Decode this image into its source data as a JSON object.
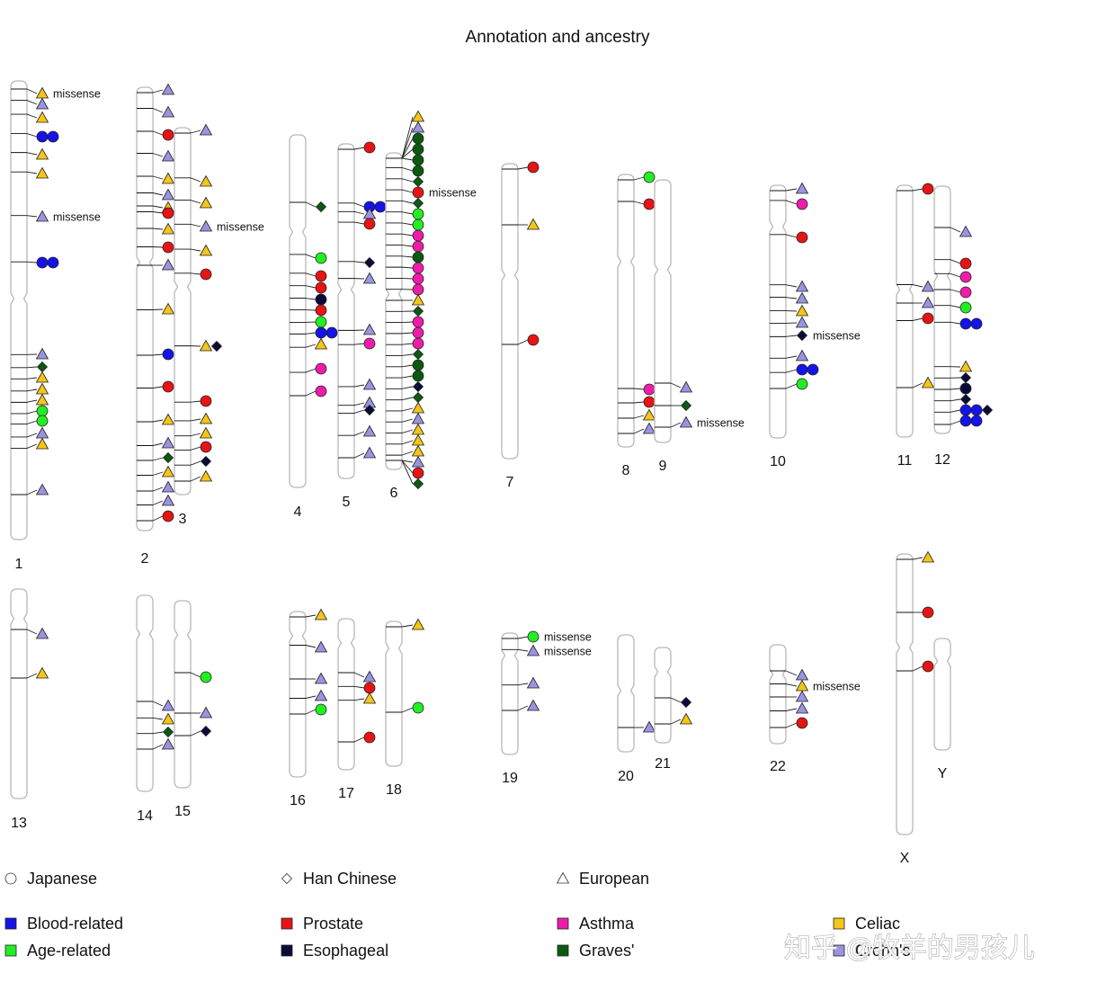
{
  "title": "Annotation and ancestry",
  "colors": {
    "Blood-related": "#1414e6",
    "Age-related": "#22ee22",
    "Prostate": "#e61414",
    "Esophageal": "#0b0b3a",
    "Asthma": "#ee1ca8",
    "Graves'": "#0c5a10",
    "Celiac": "#f5c518",
    "Crohn's": "#9a94e0"
  },
  "legend": {
    "ancestry": [
      {
        "shape": "circle",
        "label": "Japanese"
      },
      {
        "shape": "diamond",
        "label": "Han Chinese"
      },
      {
        "shape": "triangle",
        "label": "European"
      }
    ],
    "traits": [
      {
        "label": "Blood-related",
        "color": "#1414e6"
      },
      {
        "label": "Age-related",
        "color": "#22ee22"
      },
      {
        "label": "Prostate",
        "color": "#e61414"
      },
      {
        "label": "Esophageal",
        "color": "#0b0b3a"
      },
      {
        "label": "Asthma",
        "color": "#ee1ca8"
      },
      {
        "label": "Graves'",
        "color": "#0c5a10"
      },
      {
        "label": "Celiac",
        "color": "#f5c518"
      },
      {
        "label": "Crohn's",
        "color": "#9a94e0"
      }
    ]
  },
  "watermark": "知乎 @牧羊的男孩儿",
  "chromosomes": [
    {
      "label": "1",
      "loci": [
        [
          14,
          "triangle",
          "Celiac",
          "missense"
        ],
        [
          26,
          "triangle",
          "Crohn's"
        ],
        [
          41,
          "triangle",
          "Celiac"
        ],
        [
          62,
          "circle",
          "Blood-related"
        ],
        [
          62,
          "circle",
          "Blood-related"
        ],
        [
          82,
          "triangle",
          "Celiac"
        ],
        [
          103,
          "triangle",
          "Celiac"
        ],
        [
          151,
          "triangle",
          "Crohn's",
          "missense"
        ],
        [
          202,
          "circle",
          "Blood-related"
        ],
        [
          202,
          "circle",
          "Blood-related"
        ],
        [
          304,
          "triangle",
          "Crohn's"
        ],
        [
          318,
          "diamond",
          "Graves'"
        ],
        [
          330,
          "triangle",
          "Celiac"
        ],
        [
          343,
          "triangle",
          "Celiac"
        ],
        [
          355,
          "triangle",
          "Celiac"
        ],
        [
          367,
          "circle",
          "Age-related"
        ],
        [
          378,
          "circle",
          "Age-related"
        ],
        [
          392,
          "triangle",
          "Crohn's"
        ],
        [
          404,
          "triangle",
          "Celiac"
        ],
        [
          455,
          "triangle",
          "Crohn's"
        ]
      ]
    },
    {
      "label": "2",
      "loci": [
        [
          3,
          "triangle",
          "Crohn's"
        ],
        [
          28,
          "triangle",
          "Crohn's"
        ],
        [
          53,
          "circle",
          "Prostate"
        ],
        [
          77,
          "triangle",
          "Crohn's"
        ],
        [
          102,
          "triangle",
          "Celiac"
        ],
        [
          120,
          "triangle",
          "Crohn's"
        ],
        [
          134,
          "triangle",
          "Celiac"
        ],
        [
          140,
          "circle",
          "Prostate"
        ],
        [
          158,
          "triangle",
          "Celiac"
        ],
        [
          178,
          "circle",
          "Prostate"
        ],
        [
          198,
          "triangle",
          "Crohn's"
        ],
        [
          247,
          "triangle",
          "Celiac"
        ],
        [
          297,
          "circle",
          "Blood-related"
        ],
        [
          333,
          "circle",
          "Prostate"
        ],
        [
          370,
          "triangle",
          "Celiac"
        ],
        [
          396,
          "triangle",
          "Crohn's"
        ],
        [
          412,
          "diamond",
          "Graves'"
        ],
        [
          428,
          "triangle",
          "Celiac"
        ],
        [
          445,
          "triangle",
          "Crohn's"
        ],
        [
          460,
          "triangle",
          "Crohn's"
        ],
        [
          477,
          "circle",
          "Prostate"
        ]
      ]
    },
    {
      "label": "3",
      "loci": [
        [
          3,
          "triangle",
          "Crohn's"
        ],
        [
          60,
          "triangle",
          "Celiac"
        ],
        [
          84,
          "triangle",
          "Celiac"
        ],
        [
          110,
          "triangle",
          "Crohn's",
          "missense"
        ],
        [
          137,
          "triangle",
          "Celiac"
        ],
        [
          163,
          "circle",
          "Prostate"
        ],
        [
          243,
          "triangle",
          "Celiac"
        ],
        [
          243,
          "diamond",
          "Esophageal"
        ],
        [
          304,
          "circle",
          "Prostate"
        ],
        [
          324,
          "triangle",
          "Celiac"
        ],
        [
          340,
          "triangle",
          "Celiac"
        ],
        [
          355,
          "circle",
          "Prostate"
        ],
        [
          371,
          "diamond",
          "Esophageal"
        ],
        [
          388,
          "triangle",
          "Celiac"
        ]
      ]
    },
    {
      "label": "4",
      "loci": [
        [
          80,
          "diamond",
          "Graves'"
        ],
        [
          137,
          "circle",
          "Age-related"
        ],
        [
          157,
          "circle",
          "Prostate"
        ],
        [
          170,
          "circle",
          "Prostate"
        ],
        [
          183,
          "circle",
          "Esophageal"
        ],
        [
          195,
          "circle",
          "Prostate"
        ],
        [
          208,
          "circle",
          "Age-related"
        ],
        [
          220,
          "circle",
          "Blood-related"
        ],
        [
          220,
          "circle",
          "Blood-related"
        ],
        [
          233,
          "triangle",
          "Celiac"
        ],
        [
          260,
          "circle",
          "Asthma"
        ],
        [
          285,
          "circle",
          "Asthma"
        ]
      ]
    },
    {
      "label": "5",
      "loci": [
        [
          4,
          "circle",
          "Prostate"
        ],
        [
          70,
          "circle",
          "Blood-related"
        ],
        [
          70,
          "circle",
          "Blood-related"
        ],
        [
          78,
          "triangle",
          "Crohn's"
        ],
        [
          89,
          "circle",
          "Prostate"
        ],
        [
          132,
          "diamond",
          "Esophageal"
        ],
        [
          150,
          "triangle",
          "Crohn's"
        ],
        [
          207,
          "triangle",
          "Crohn's"
        ],
        [
          222,
          "circle",
          "Asthma"
        ],
        [
          268,
          "triangle",
          "Crohn's"
        ],
        [
          288,
          "triangle",
          "Crohn's"
        ],
        [
          296,
          "diamond",
          "Esophageal"
        ],
        [
          320,
          "triangle",
          "Crohn's"
        ],
        [
          344,
          "triangle",
          "Crohn's"
        ]
      ]
    },
    {
      "label": "6",
      "loci": [
        [
          -40,
          "triangle",
          "Celiac"
        ],
        [
          -28,
          "triangle",
          "Crohn's"
        ],
        [
          -16,
          "circle",
          "Graves'"
        ],
        [
          -4,
          "circle",
          "Graves'"
        ],
        [
          8,
          "circle",
          "Graves'"
        ],
        [
          20,
          "circle",
          "Graves'"
        ],
        [
          32,
          "diamond",
          "Graves'"
        ],
        [
          44,
          "circle",
          "Prostate",
          "missense"
        ],
        [
          56,
          "diamond",
          "Graves'"
        ],
        [
          68,
          "circle",
          "Age-related"
        ],
        [
          80,
          "circle",
          "Age-related"
        ],
        [
          92,
          "circle",
          "Asthma"
        ],
        [
          104,
          "circle",
          "Asthma"
        ],
        [
          116,
          "circle",
          "Graves'"
        ],
        [
          128,
          "circle",
          "Asthma"
        ],
        [
          140,
          "circle",
          "Asthma"
        ],
        [
          152,
          "circle",
          "Asthma"
        ],
        [
          164,
          "triangle",
          "Celiac"
        ],
        [
          176,
          "diamond",
          "Graves'"
        ],
        [
          188,
          "circle",
          "Asthma"
        ],
        [
          200,
          "circle",
          "Asthma"
        ],
        [
          212,
          "circle",
          "Asthma"
        ],
        [
          224,
          "diamond",
          "Graves'"
        ],
        [
          236,
          "circle",
          "Graves'"
        ],
        [
          248,
          "circle",
          "Graves'"
        ],
        [
          260,
          "diamond",
          "Esophageal"
        ],
        [
          272,
          "diamond",
          "Graves'"
        ],
        [
          284,
          "triangle",
          "Celiac"
        ],
        [
          296,
          "triangle",
          "Crohn's"
        ],
        [
          308,
          "triangle",
          "Celiac"
        ],
        [
          320,
          "triangle",
          "Celiac"
        ],
        [
          332,
          "triangle",
          "Celiac"
        ],
        [
          344,
          "triangle",
          "Crohn's"
        ],
        [
          356,
          "circle",
          "Prostate"
        ],
        [
          368,
          "diamond",
          "Graves'"
        ]
      ]
    },
    {
      "label": "7",
      "loci": [
        [
          4,
          "circle",
          "Prostate"
        ],
        [
          68,
          "triangle",
          "Celiac"
        ],
        [
          196,
          "circle",
          "Prostate"
        ]
      ]
    },
    {
      "label": "8",
      "loci": [
        [
          3,
          "circle",
          "Age-related"
        ],
        [
          33,
          "circle",
          "Prostate"
        ],
        [
          239,
          "circle",
          "Asthma"
        ],
        [
          253,
          "circle",
          "Prostate"
        ],
        [
          268,
          "triangle",
          "Celiac"
        ],
        [
          283,
          "triangle",
          "Crohn's"
        ]
      ]
    },
    {
      "label": "9",
      "loci": [
        [
          231,
          "triangle",
          "Crohn's"
        ],
        [
          251,
          "diamond",
          "Graves'"
        ],
        [
          270,
          "triangle",
          "Crohn's",
          "missense"
        ]
      ]
    },
    {
      "label": "10",
      "loci": [
        [
          4,
          "triangle",
          "Crohn's"
        ],
        [
          21,
          "circle",
          "Asthma"
        ],
        [
          58,
          "circle",
          "Prostate"
        ],
        [
          113,
          "triangle",
          "Crohn's"
        ],
        [
          126,
          "triangle",
          "Crohn's"
        ],
        [
          140,
          "triangle",
          "Celiac"
        ],
        [
          153,
          "triangle",
          "Crohn's"
        ],
        [
          167,
          "diamond",
          "Esophageal",
          "missense"
        ],
        [
          190,
          "triangle",
          "Crohn's"
        ],
        [
          205,
          "circle",
          "Blood-related"
        ],
        [
          205,
          "circle",
          "Blood-related"
        ],
        [
          221,
          "circle",
          "Age-related"
        ]
      ]
    },
    {
      "label": "11",
      "loci": [
        [
          4,
          "circle",
          "Prostate"
        ],
        [
          113,
          "triangle",
          "Crohn's"
        ],
        [
          131,
          "triangle",
          "Crohn's"
        ],
        [
          148,
          "circle",
          "Prostate"
        ],
        [
          220,
          "triangle",
          "Celiac"
        ]
      ]
    },
    {
      "label": "12",
      "loci": [
        [
          51,
          "triangle",
          "Crohn's"
        ],
        [
          86,
          "circle",
          "Prostate"
        ],
        [
          101,
          "circle",
          "Asthma"
        ],
        [
          118,
          "circle",
          "Asthma"
        ],
        [
          135,
          "circle",
          "Age-related"
        ],
        [
          153,
          "circle",
          "Blood-related"
        ],
        [
          153,
          "circle",
          "Blood-related"
        ],
        [
          201,
          "triangle",
          "Celiac"
        ],
        [
          213,
          "diamond",
          "Esophageal"
        ],
        [
          225,
          "circle",
          "Esophageal"
        ],
        [
          237,
          "diamond",
          "Esophageal"
        ],
        [
          249,
          "circle",
          "Blood-related"
        ],
        [
          249,
          "circle",
          "Blood-related"
        ],
        [
          249,
          "diamond",
          "Esophageal"
        ],
        [
          261,
          "circle",
          "Blood-related"
        ],
        [
          261,
          "circle",
          "Blood-related"
        ]
      ]
    },
    {
      "label": "13",
      "loci": [
        [
          50,
          "triangle",
          "Crohn's"
        ],
        [
          94,
          "triangle",
          "Celiac"
        ]
      ]
    },
    {
      "label": "14",
      "loci": [
        [
          123,
          "triangle",
          "Crohn's"
        ],
        [
          138,
          "triangle",
          "Celiac"
        ],
        [
          152,
          "diamond",
          "Graves'"
        ],
        [
          166,
          "triangle",
          "Crohn's"
        ]
      ]
    },
    {
      "label": "15",
      "loci": [
        [
          85,
          "circle",
          "Age-related"
        ],
        [
          125,
          "triangle",
          "Crohn's"
        ],
        [
          145,
          "diamond",
          "Esophageal"
        ]
      ]
    },
    {
      "label": "16",
      "loci": [
        [
          4,
          "triangle",
          "Celiac"
        ],
        [
          40,
          "triangle",
          "Crohn's"
        ],
        [
          75,
          "triangle",
          "Crohn's"
        ],
        [
          94,
          "triangle",
          "Crohn's"
        ],
        [
          109,
          "circle",
          "Age-related"
        ]
      ]
    },
    {
      "label": "17",
      "loci": [
        [
          65,
          "triangle",
          "Crohn's"
        ],
        [
          77,
          "circle",
          "Prostate"
        ],
        [
          89,
          "triangle",
          "Celiac"
        ],
        [
          132,
          "circle",
          "Prostate"
        ]
      ]
    },
    {
      "label": "18",
      "loci": [
        [
          4,
          "triangle",
          "Celiac"
        ],
        [
          96,
          "circle",
          "Age-related"
        ]
      ]
    },
    {
      "label": "19",
      "loci": [
        [
          4,
          "circle",
          "Age-related",
          "missense"
        ],
        [
          20,
          "triangle",
          "Crohn's",
          "missense"
        ],
        [
          56,
          "triangle",
          "Crohn's"
        ],
        [
          81,
          "triangle",
          "Crohn's"
        ]
      ]
    },
    {
      "label": "20",
      "loci": [
        [
          103,
          "triangle",
          "Crohn's"
        ]
      ]
    },
    {
      "label": "21",
      "loci": [
        [
          61,
          "diamond",
          "Esophageal"
        ],
        [
          80,
          "triangle",
          "Celiac"
        ]
      ]
    },
    {
      "label": "22",
      "loci": [
        [
          34,
          "triangle",
          "Crohn's"
        ],
        [
          46,
          "triangle",
          "Celiac",
          "missense"
        ],
        [
          58,
          "triangle",
          "Crohn's"
        ],
        [
          71,
          "triangle",
          "Crohn's"
        ],
        [
          87,
          "circle",
          "Prostate"
        ]
      ]
    },
    {
      "label": "X",
      "loci": [
        [
          4,
          "triangle",
          "Celiac"
        ],
        [
          65,
          "circle",
          "Prostate"
        ],
        [
          125,
          "circle",
          "Prostate"
        ]
      ]
    },
    {
      "label": "Y",
      "loci": []
    }
  ]
}
